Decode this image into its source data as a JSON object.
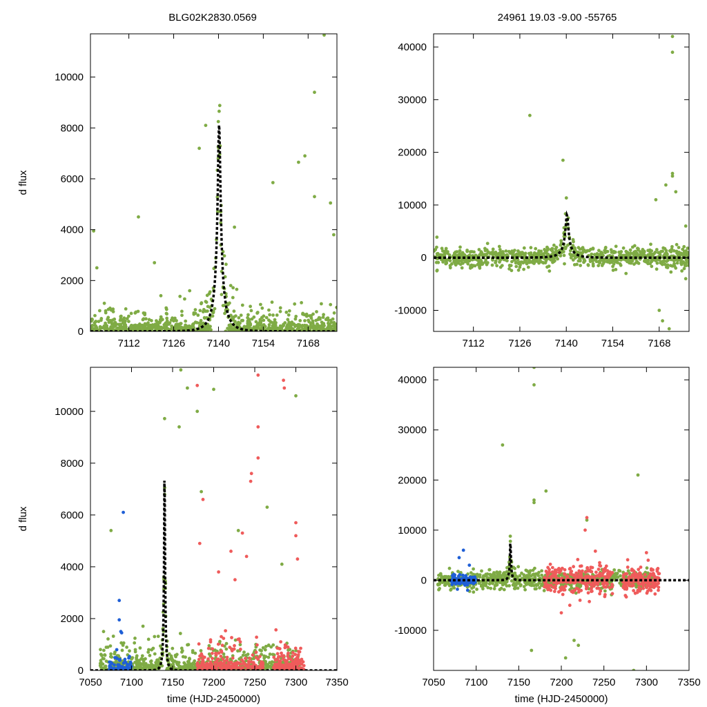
{
  "figure": {
    "title_left": "BLG02K2830.0569",
    "title_right": "24961   19.03   -9.00   -55765",
    "colors": {
      "kmtc": "#7fab45",
      "kmts": "#ef5b5b",
      "kmta": "#1f5fd6",
      "fit": "#000000"
    }
  },
  "chart_data": [
    {
      "name": "zoom-left",
      "type": "scatter",
      "xlabel": "",
      "ylabel": "d flux",
      "xlim": [
        7100,
        7177
      ],
      "ylim": [
        0,
        11700
      ],
      "xticks": [
        7112,
        7126,
        7140,
        7154,
        7168
      ],
      "yticks": [
        0,
        2000,
        4000,
        6000,
        8000,
        10000
      ],
      "fit": {
        "model": "paczynski",
        "t0": 7140.2,
        "tE": 4.0,
        "u0": 0.11,
        "fs": 1000
      },
      "series": [
        {
          "name": "green",
          "color_key": "kmtc",
          "x0": 7100,
          "x1": 7177,
          "noise": 450,
          "outliers": [
            [
              7101,
              3950
            ],
            [
              7102,
              2500
            ],
            [
              7115,
              4500
            ],
            [
              7157,
              5850
            ],
            [
              7165,
              6650
            ],
            [
              7167,
              6900
            ],
            [
              7170,
              5300
            ],
            [
              7170,
              9400
            ],
            [
              7175,
              5050
            ],
            [
              7176,
              3800
            ],
            [
              7173,
              11650
            ],
            [
              7120,
              2700
            ],
            [
              7134,
              7200
            ],
            [
              7131,
              1600
            ],
            [
              7136,
              8100
            ],
            [
              7145,
              4100
            ]
          ]
        }
      ]
    },
    {
      "name": "zoom-right",
      "type": "scatter",
      "xlabel": "",
      "ylabel": "",
      "xlim": [
        7100,
        7177
      ],
      "ylim": [
        -14000,
        42500
      ],
      "xticks": [
        7112,
        7126,
        7140,
        7154,
        7168
      ],
      "yticks": [
        -10000,
        0,
        10000,
        20000,
        30000,
        40000
      ],
      "fit": {
        "model": "paczynski",
        "t0": 7140.2,
        "tE": 4.0,
        "u0": 0.11,
        "fs": 1000
      },
      "series": [
        {
          "name": "green",
          "color_key": "kmtc",
          "x0": 7100,
          "x1": 7177,
          "noise": 900,
          "outliers": [
            [
              7129,
              27000
            ],
            [
              7139,
              18500
            ],
            [
              7172,
              42000
            ],
            [
              7172,
              39000
            ],
            [
              7172,
              16000
            ],
            [
              7172,
              15500
            ],
            [
              7170,
              13800
            ],
            [
              7167,
              11000
            ],
            [
              7168,
              -10000
            ],
            [
              7169,
              -12000
            ],
            [
              7171,
              -13500
            ],
            [
              7158,
              -3000
            ],
            [
              7160,
              2000
            ],
            [
              7173,
              12500
            ],
            [
              7101,
              3900
            ],
            [
              7101,
              -2500
            ],
            [
              7176,
              6000
            ],
            [
              7176,
              -4000
            ]
          ]
        }
      ]
    },
    {
      "name": "full-left",
      "type": "scatter",
      "xlabel": "time (HJD-2450000)",
      "ylabel": "d flux",
      "xlim": [
        7050,
        7350
      ],
      "ylim": [
        0,
        11700
      ],
      "xticks": [
        7050,
        7100,
        7150,
        7200,
        7250,
        7300,
        7350
      ],
      "yticks": [
        0,
        2000,
        4000,
        6000,
        8000,
        10000
      ],
      "fit": {
        "model": "paczynski",
        "t0": 7140.2,
        "tE": 4.0,
        "u0": 0.11,
        "fs": 1000
      },
      "series": [
        {
          "name": "green",
          "color_key": "kmtc",
          "x0": 7060,
          "x1": 7305,
          "noise": 500,
          "outliers": [
            [
              7066,
              1500
            ],
            [
              7075,
              5400
            ],
            [
              7160,
              11600
            ],
            [
              7168,
              10900
            ],
            [
              7180,
              10000
            ],
            [
              7200,
              10850
            ],
            [
              7300,
              10600
            ],
            [
              7158,
              9400
            ],
            [
              7185,
              6900
            ],
            [
              7230,
              5400
            ],
            [
              7265,
              6300
            ],
            [
              7283,
              4100
            ]
          ]
        },
        {
          "name": "red",
          "color_key": "kmts",
          "x0": 7180,
          "x1": 7310,
          "noise": 600,
          "gaps": [
            [
              7260,
              7272
            ]
          ],
          "outliers": [
            [
              7180,
              11000
            ],
            [
              7254,
              11400
            ],
            [
              7285,
              11200
            ],
            [
              7286,
              10900
            ],
            [
              7254,
              9400
            ],
            [
              7254,
              8200
            ],
            [
              7246,
              7600
            ],
            [
              7245,
              7300
            ],
            [
              7187,
              6600
            ],
            [
              7183,
              4900
            ],
            [
              7221,
              4600
            ],
            [
              7235,
              5300
            ],
            [
              7240,
              4400
            ],
            [
              7300,
              5700
            ],
            [
              7300,
              5200
            ],
            [
              7302,
              4300
            ],
            [
              7226,
              3500
            ],
            [
              7206,
              3800
            ]
          ]
        },
        {
          "name": "blue",
          "color_key": "kmta",
          "x0": 7073,
          "x1": 7100,
          "noise": 250,
          "outliers": [
            [
              7090,
              6100
            ],
            [
              7085,
              2700
            ],
            [
              7085,
              1950
            ],
            [
              7087,
              1500
            ],
            [
              7088,
              1450
            ],
            [
              7082,
              800
            ]
          ]
        }
      ]
    },
    {
      "name": "full-right",
      "type": "scatter",
      "xlabel": "time (HJD-2450000)",
      "ylabel": "",
      "xlim": [
        7050,
        7350
      ],
      "ylim": [
        -18000,
        42500
      ],
      "xticks": [
        7050,
        7100,
        7150,
        7200,
        7250,
        7300,
        7350
      ],
      "yticks": [
        -10000,
        0,
        10000,
        20000,
        30000,
        40000
      ],
      "fit": {
        "model": "paczynski",
        "t0": 7140.2,
        "tE": 4.0,
        "u0": 0.11,
        "fs": 1000
      },
      "series": [
        {
          "name": "green",
          "color_key": "kmtc",
          "x0": 7055,
          "x1": 7310,
          "noise": 900,
          "outliers": [
            [
              7168,
              42500
            ],
            [
              7168,
              39000
            ],
            [
              7131,
              27000
            ],
            [
              7290,
              21000
            ],
            [
              7182,
              17800
            ],
            [
              7168,
              16000
            ],
            [
              7168,
              15500
            ],
            [
              7165,
              -14000
            ],
            [
              7205,
              -15500
            ],
            [
              7220,
              -13000
            ],
            [
              7215,
              -12000
            ],
            [
              7285,
              -18000
            ],
            [
              7230,
              12000
            ]
          ]
        },
        {
          "name": "red",
          "color_key": "kmts",
          "x0": 7180,
          "x1": 7315,
          "noise": 1400,
          "gaps": [
            [
              7260,
              7272
            ]
          ],
          "outliers": [
            [
              7230,
              12500
            ],
            [
              7228,
              10000
            ],
            [
              7240,
              5800
            ],
            [
              7245,
              3500
            ],
            [
              7300,
              5500
            ],
            [
              7302,
              4000
            ],
            [
              7210,
              -5000
            ],
            [
              7200,
              -6500
            ],
            [
              7222,
              -4000
            ]
          ]
        },
        {
          "name": "blue",
          "color_key": "kmta",
          "x0": 7070,
          "x1": 7100,
          "noise": 500,
          "outliers": [
            [
              7085,
              6000
            ],
            [
              7080,
              4500
            ],
            [
              7092,
              3000
            ],
            [
              7078,
              -1800
            ],
            [
              7090,
              -2000
            ]
          ]
        }
      ]
    }
  ]
}
